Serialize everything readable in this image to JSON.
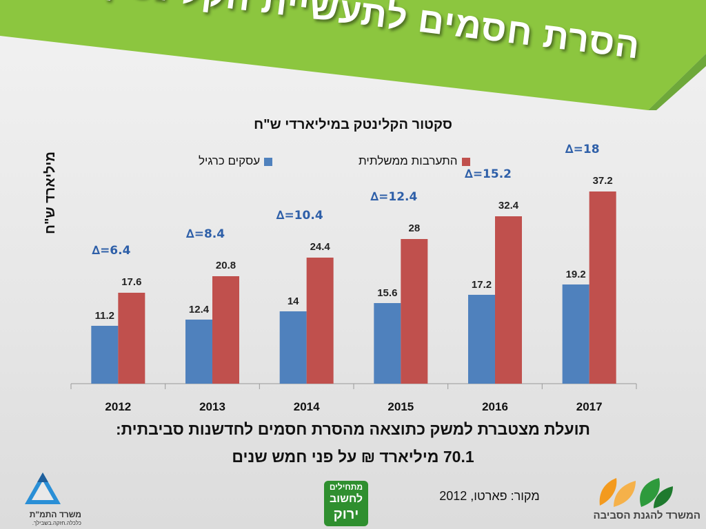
{
  "slide": {
    "title": "הסרת חסמים לתעשיית הקלינטק",
    "footer_line1": "תועלת מצטברת למשק כתוצאה מהסרת חסמים לחדשנות סביבתית:",
    "footer_line2": "70.1 מיליארד ₪ על פני חמש שנים",
    "source": "מקור: פארטו, 2012",
    "colors": {
      "banner": "#8cc63f",
      "banner_dark": "#5f9a2b",
      "series_blue": "#4f81bd",
      "series_red": "#c0504d",
      "delta_text": "#2e5fa8"
    }
  },
  "logos": {
    "left": {
      "line1": "משרד התמ\"ת",
      "line2": "כלכלה.חזקה.בשבילך.",
      "icon": "blue-triangle-logo-icon"
    },
    "center": {
      "line1": "מתחילים",
      "line2": "לחשוב",
      "line3": "ירוק",
      "icon": "think-green-logo-icon"
    },
    "right": {
      "text": "המשרד להגנת הסביבה",
      "icon": "leaves-logo-icon"
    }
  },
  "chart_data": {
    "type": "bar",
    "title": "סקטור הקלינטק במיליארדי ש\"ח",
    "ylabel": "מיליארד ש\"ח",
    "xlabel": "",
    "ylim": [
      0,
      40
    ],
    "grid": false,
    "legend_position": "top",
    "categories": [
      "2012",
      "2013",
      "2014",
      "2015",
      "2016",
      "2017"
    ],
    "series": [
      {
        "name": "עסקים כרגיל",
        "color": "#4f81bd",
        "values": [
          11.2,
          12.4,
          14,
          15.6,
          17.2,
          19.2
        ]
      },
      {
        "name": "התערבות ממשלתית",
        "color": "#c0504d",
        "values": [
          17.6,
          20.8,
          24.4,
          28,
          32.4,
          37.2
        ]
      }
    ],
    "annotations": [
      "∆=6.4",
      "∆=8.4",
      "∆=10.4",
      "∆=12.4",
      "∆=15.2",
      "∆=18"
    ]
  }
}
